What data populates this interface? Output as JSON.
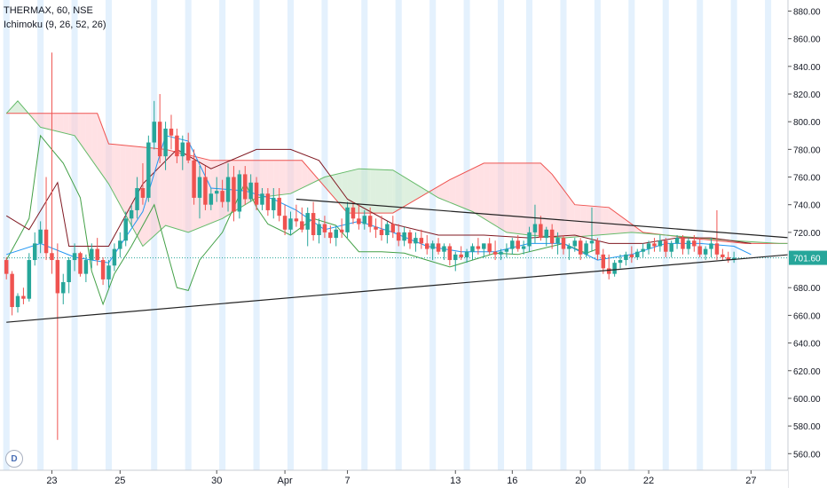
{
  "legend": {
    "symbol_line": "THERMAX, 60, NSE",
    "indicator_line": "Ichimoku (9, 26, 52, 26)"
  },
  "logo_letter": "D",
  "colors": {
    "up": "#26a69a",
    "down": "#ef5350",
    "tenkan": "#2196f3",
    "kijun": "#801922",
    "lagging": "#43a047",
    "span_a": "#66bb6a",
    "span_b": "#ef5350",
    "cloud_bull": "#c8e6c9",
    "cloud_bear": "#ffcdd2",
    "session_band": "#ddeefc",
    "price_label_bg": "#26a69a"
  },
  "chart_data": {
    "type": "candlestick",
    "symbol": "THERMAX",
    "interval": "60",
    "exchange": "NSE",
    "indicator": "Ichimoku (9, 26, 52, 26)",
    "y_axis": {
      "range": [
        548,
        888
      ],
      "ticks": [
        880,
        860,
        840,
        820,
        800,
        780,
        760,
        740,
        720,
        701.6,
        680,
        660,
        640,
        620,
        600,
        580,
        560
      ],
      "tick_labels": [
        "880.00",
        "860.00",
        "840.00",
        "820.00",
        "800.00",
        "780.00",
        "760.00",
        "740.00",
        "720.00",
        "701.60",
        "680.00",
        "660.00",
        "640.00",
        "620.00",
        "600.00",
        "580.00",
        "560.00"
      ],
      "last_price": 701.6,
      "last_price_label": "701.60"
    },
    "x_axis": {
      "labels": [
        "23",
        "25",
        "30",
        "Apr",
        "7",
        "13",
        "16",
        "20",
        "22",
        "27"
      ],
      "label_bar_index": [
        8,
        20,
        37,
        49,
        60,
        79,
        89,
        101,
        113,
        131
      ]
    },
    "total_slots": 138,
    "candles": [
      [
        700,
        702,
        686,
        690
      ],
      [
        690,
        692,
        660,
        666
      ],
      [
        666,
        676,
        662,
        674
      ],
      [
        674,
        680,
        668,
        672
      ],
      [
        672,
        705,
        670,
        700
      ],
      [
        700,
        720,
        696,
        712
      ],
      [
        712,
        728,
        705,
        722
      ],
      [
        722,
        760,
        700,
        705
      ],
      [
        705,
        850,
        690,
        700
      ],
      [
        700,
        712,
        570,
        676
      ],
      [
        676,
        690,
        668,
        684
      ],
      [
        684,
        702,
        676,
        700
      ],
      [
        700,
        712,
        692,
        705
      ],
      [
        705,
        706,
        688,
        690
      ],
      [
        690,
        704,
        684,
        700
      ],
      [
        700,
        712,
        694,
        708
      ],
      [
        708,
        716,
        696,
        700
      ],
      [
        700,
        702,
        682,
        686
      ],
      [
        686,
        700,
        680,
        696
      ],
      [
        696,
        712,
        692,
        708
      ],
      [
        708,
        720,
        702,
        714
      ],
      [
        714,
        735,
        710,
        730
      ],
      [
        730,
        740,
        724,
        736
      ],
      [
        736,
        760,
        730,
        752
      ],
      [
        752,
        770,
        740,
        745
      ],
      [
        745,
        790,
        742,
        785
      ],
      [
        785,
        815,
        780,
        800
      ],
      [
        800,
        820,
        770,
        775
      ],
      [
        775,
        800,
        765,
        795
      ],
      [
        795,
        805,
        780,
        790
      ],
      [
        790,
        795,
        770,
        775
      ],
      [
        775,
        790,
        765,
        785
      ],
      [
        785,
        792,
        770,
        772
      ],
      [
        772,
        780,
        740,
        745
      ],
      [
        745,
        768,
        730,
        760
      ],
      [
        760,
        768,
        736,
        740
      ],
      [
        740,
        752,
        736,
        748
      ],
      [
        748,
        760,
        742,
        750
      ],
      [
        750,
        758,
        738,
        742
      ],
      [
        742,
        770,
        735,
        760
      ],
      [
        760,
        768,
        728,
        735
      ],
      [
        735,
        765,
        730,
        762
      ],
      [
        762,
        768,
        740,
        744
      ],
      [
        744,
        762,
        742,
        756
      ],
      [
        756,
        760,
        736,
        740
      ],
      [
        740,
        752,
        736,
        748
      ],
      [
        748,
        752,
        732,
        736
      ],
      [
        736,
        752,
        730,
        745
      ],
      [
        745,
        752,
        728,
        732
      ],
      [
        732,
        740,
        718,
        722
      ],
      [
        722,
        735,
        718,
        730
      ],
      [
        730,
        740,
        724,
        728
      ],
      [
        728,
        738,
        720,
        722
      ],
      [
        722,
        738,
        710,
        734
      ],
      [
        734,
        742,
        714,
        718
      ],
      [
        718,
        730,
        712,
        726
      ],
      [
        726,
        732,
        716,
        720
      ],
      [
        720,
        725,
        712,
        716
      ],
      [
        716,
        725,
        710,
        722
      ],
      [
        722,
        730,
        716,
        720
      ],
      [
        720,
        742,
        716,
        738
      ],
      [
        738,
        742,
        726,
        730
      ],
      [
        730,
        740,
        722,
        726
      ],
      [
        726,
        736,
        722,
        732
      ],
      [
        732,
        738,
        720,
        724
      ],
      [
        724,
        730,
        716,
        722
      ],
      [
        722,
        732,
        714,
        718
      ],
      [
        718,
        728,
        712,
        726
      ],
      [
        726,
        732,
        716,
        720
      ],
      [
        720,
        726,
        710,
        714
      ],
      [
        714,
        724,
        710,
        720
      ],
      [
        720,
        722,
        708,
        712
      ],
      [
        712,
        720,
        706,
        716
      ],
      [
        716,
        722,
        708,
        712
      ],
      [
        712,
        718,
        704,
        708
      ],
      [
        708,
        714,
        700,
        712
      ],
      [
        712,
        716,
        704,
        706
      ],
      [
        706,
        712,
        700,
        710
      ],
      [
        710,
        712,
        696,
        700
      ],
      [
        700,
        706,
        692,
        704
      ],
      [
        704,
        710,
        700,
        702
      ],
      [
        702,
        708,
        698,
        706
      ],
      [
        706,
        712,
        700,
        710
      ],
      [
        710,
        716,
        704,
        708
      ],
      [
        708,
        712,
        702,
        712
      ],
      [
        712,
        716,
        704,
        706
      ],
      [
        706,
        714,
        700,
        704
      ],
      [
        704,
        708,
        700,
        706
      ],
      [
        706,
        712,
        702,
        708
      ],
      [
        708,
        716,
        704,
        714
      ],
      [
        714,
        718,
        706,
        708
      ],
      [
        708,
        714,
        704,
        710
      ],
      [
        710,
        724,
        706,
        720
      ],
      [
        720,
        740,
        712,
        726
      ],
      [
        726,
        732,
        714,
        716
      ],
      [
        716,
        724,
        710,
        722
      ],
      [
        722,
        726,
        708,
        712
      ],
      [
        712,
        720,
        704,
        716
      ],
      [
        716,
        718,
        704,
        708
      ],
      [
        708,
        712,
        700,
        710
      ],
      [
        710,
        716,
        706,
        714
      ],
      [
        714,
        716,
        700,
        704
      ],
      [
        704,
        714,
        702,
        712
      ],
      [
        712,
        738,
        706,
        714
      ],
      [
        714,
        716,
        700,
        704
      ],
      [
        704,
        708,
        690,
        694
      ],
      [
        694,
        704,
        686,
        690
      ],
      [
        690,
        700,
        688,
        698
      ],
      [
        698,
        704,
        694,
        700
      ],
      [
        700,
        706,
        696,
        704
      ],
      [
        704,
        710,
        698,
        702
      ],
      [
        702,
        708,
        700,
        706
      ],
      [
        706,
        712,
        702,
        708
      ],
      [
        708,
        714,
        704,
        712
      ],
      [
        712,
        716,
        706,
        710
      ],
      [
        710,
        718,
        706,
        714
      ],
      [
        714,
        716,
        702,
        706
      ],
      [
        706,
        714,
        702,
        712
      ],
      [
        712,
        718,
        708,
        716
      ],
      [
        716,
        718,
        704,
        708
      ],
      [
        708,
        716,
        704,
        714
      ],
      [
        714,
        718,
        706,
        710
      ],
      [
        710,
        716,
        702,
        704
      ],
      [
        704,
        710,
        700,
        708
      ],
      [
        708,
        716,
        702,
        712
      ],
      [
        712,
        736,
        700,
        704
      ],
      [
        704,
        708,
        700,
        702
      ],
      [
        702,
        706,
        698,
        700
      ],
      [
        700,
        706,
        698,
        701.6
      ]
    ],
    "trendlines": [
      {
        "name": "upper",
        "from": [
          51,
          744
        ],
        "to": [
          138,
          716
        ]
      },
      {
        "name": "lower",
        "from": [
          0,
          655
        ],
        "to": [
          138,
          704
        ]
      }
    ],
    "ichimoku": {
      "tenkan": [
        [
          0,
          704
        ],
        [
          6,
          712
        ],
        [
          12,
          702
        ],
        [
          18,
          698
        ],
        [
          24,
          735
        ],
        [
          28,
          790
        ],
        [
          32,
          786
        ],
        [
          36,
          752
        ],
        [
          42,
          750
        ],
        [
          47,
          744
        ],
        [
          51,
          736
        ],
        [
          56,
          722
        ],
        [
          62,
          728
        ],
        [
          68,
          720
        ],
        [
          74,
          710
        ],
        [
          80,
          706
        ],
        [
          86,
          706
        ],
        [
          92,
          712
        ],
        [
          98,
          712
        ],
        [
          104,
          700
        ],
        [
          110,
          704
        ],
        [
          116,
          712
        ],
        [
          122,
          712
        ],
        [
          128,
          710
        ],
        [
          131,
          704
        ]
      ],
      "kijun": [
        [
          0,
          732
        ],
        [
          4,
          722
        ],
        [
          9,
          756
        ],
        [
          11,
          710
        ],
        [
          18,
          710
        ],
        [
          24,
          755
        ],
        [
          30,
          780
        ],
        [
          36,
          766
        ],
        [
          44,
          780
        ],
        [
          50,
          780
        ],
        [
          55,
          772
        ],
        [
          60,
          744
        ],
        [
          68,
          726
        ],
        [
          76,
          718
        ],
        [
          84,
          718
        ],
        [
          92,
          716
        ],
        [
          100,
          718
        ],
        [
          106,
          712
        ],
        [
          112,
          712
        ],
        [
          118,
          716
        ],
        [
          124,
          716
        ],
        [
          131,
          712
        ]
      ],
      "span_a": [
        [
          0,
          806
        ],
        [
          2,
          815
        ],
        [
          6,
          796
        ],
        [
          12,
          790
        ],
        [
          18,
          755
        ],
        [
          24,
          710
        ],
        [
          28,
          725
        ],
        [
          32,
          720
        ],
        [
          38,
          730
        ],
        [
          44,
          745
        ],
        [
          50,
          748
        ],
        [
          56,
          760
        ],
        [
          62,
          766
        ],
        [
          68,
          765
        ],
        [
          72,
          755
        ],
        [
          76,
          745
        ],
        [
          82,
          735
        ],
        [
          88,
          720
        ],
        [
          92,
          718
        ],
        [
          98,
          716
        ],
        [
          104,
          718
        ],
        [
          110,
          720
        ],
        [
          116,
          718
        ],
        [
          122,
          716
        ],
        [
          128,
          714
        ],
        [
          136,
          712
        ],
        [
          138,
          712
        ]
      ],
      "span_b": [
        [
          0,
          806
        ],
        [
          16,
          806
        ],
        [
          18,
          784
        ],
        [
          28,
          780
        ],
        [
          36,
          772
        ],
        [
          52,
          772
        ],
        [
          60,
          734
        ],
        [
          68,
          734
        ],
        [
          78,
          758
        ],
        [
          84,
          770
        ],
        [
          94,
          770
        ],
        [
          96,
          762
        ],
        [
          100,
          740
        ],
        [
          106,
          738
        ],
        [
          112,
          720
        ],
        [
          120,
          716
        ],
        [
          130,
          712
        ],
        [
          138,
          712
        ]
      ],
      "lagging": [
        [
          0,
          700
        ],
        [
          4,
          730
        ],
        [
          6,
          790
        ],
        [
          8,
          780
        ],
        [
          10,
          770
        ],
        [
          13,
          745
        ],
        [
          15,
          692
        ],
        [
          17,
          668
        ],
        [
          19,
          690
        ],
        [
          22,
          710
        ],
        [
          26,
          740
        ],
        [
          30,
          680
        ],
        [
          32,
          678
        ],
        [
          34,
          700
        ],
        [
          38,
          720
        ],
        [
          42,
          756
        ],
        [
          44,
          738
        ],
        [
          46,
          726
        ],
        [
          50,
          718
        ],
        [
          54,
          730
        ],
        [
          58,
          725
        ],
        [
          62,
          706
        ],
        [
          66,
          706
        ],
        [
          70,
          705
        ],
        [
          74,
          700
        ],
        [
          78,
          695
        ],
        [
          82,
          700
        ],
        [
          86,
          705
        ],
        [
          90,
          704
        ],
        [
          94,
          708
        ],
        [
          98,
          712
        ],
        [
          102,
          705
        ],
        [
          104,
          708
        ]
      ]
    },
    "session_bands": [
      0,
      6,
      12,
      18,
      26,
      32,
      38,
      44,
      50,
      56,
      63,
      69,
      75,
      81,
      87,
      92,
      98,
      104,
      110,
      116,
      122,
      128,
      134
    ]
  }
}
